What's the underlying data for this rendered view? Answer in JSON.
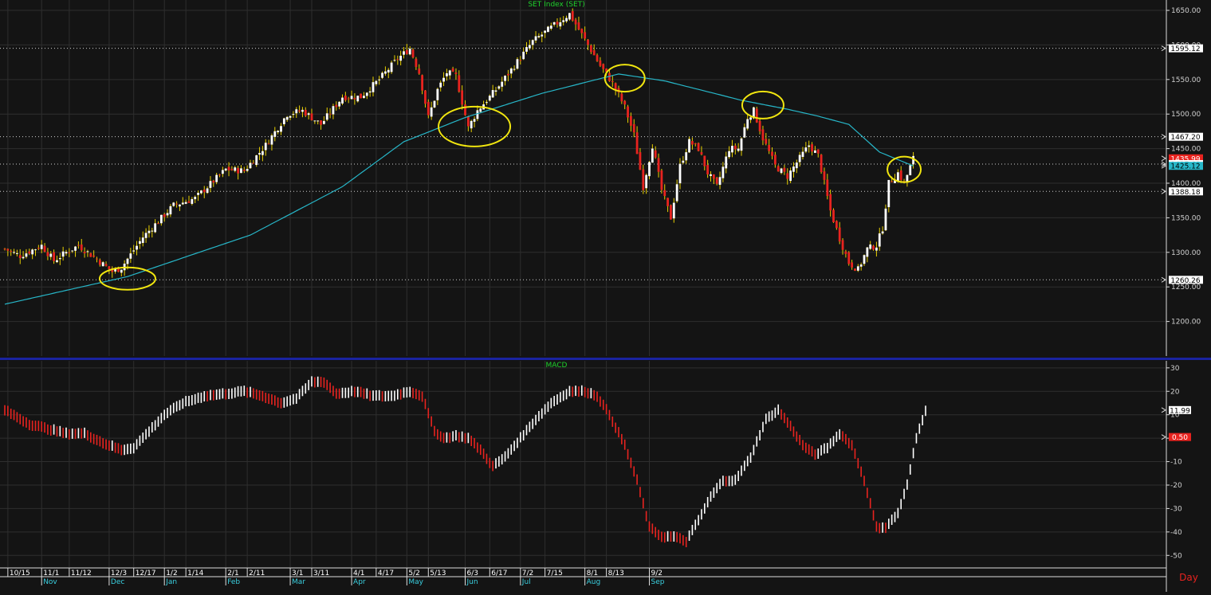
{
  "colors": {
    "background": "#141414",
    "grid": "#2e2e2e",
    "up": "#ffffff",
    "down": "#e8231f",
    "wick": "#e8d000",
    "ma": "#27b7c9",
    "highlight_ring": "#f1e60f",
    "title": "#1fd22c",
    "axis_text": "#d0d0d0",
    "separator": "#1a23a0",
    "time_text": "#3ad0e0",
    "day": "#e8231f"
  },
  "chart_data": [
    {
      "type": "candlestick",
      "title": "SET Index (SET)",
      "ylim": [
        1150,
        1665
      ],
      "y_ticks": [
        "1650.00",
        "1600.00",
        "1550.00",
        "1500.00",
        "1450.00",
        "1400.00",
        "1350.00",
        "1300.00",
        "1250.00",
        "1200.00"
      ],
      "tick_values": [
        1650,
        1600,
        1550,
        1500,
        1450,
        1400,
        1350,
        1300,
        1250,
        1200
      ],
      "reference_lines": [
        {
          "label": "1595.12",
          "value": 1595.12,
          "bg": "#ffffff",
          "fg": "#000000"
        },
        {
          "label": "1467.20",
          "value": 1467.2,
          "bg": "#ffffff",
          "fg": "#000000"
        },
        {
          "label": "1435.99",
          "value": 1435.99,
          "bg": "#e8231f",
          "fg": "#ffffff"
        },
        {
          "label": "1427.69",
          "value": 1427.69,
          "bg": "#ffffff",
          "fg": "#000000"
        },
        {
          "label": "1425.12",
          "value": 1425.12,
          "bg": "#27b7c9",
          "fg": "#000000"
        },
        {
          "label": "1388.18",
          "value": 1388.18,
          "bg": "#ffffff",
          "fg": "#000000"
        },
        {
          "label": "1260.26",
          "value": 1260.26,
          "bg": "#ffffff",
          "fg": "#000000"
        }
      ],
      "dotted_lines": [
        1595.12,
        1467.2,
        1427.69,
        1388.18,
        1260.26
      ],
      "anchors": [
        {
          "i": 0,
          "v": 1305
        },
        {
          "i": 5,
          "v": 1295
        },
        {
          "i": 12,
          "v": 1310
        },
        {
          "i": 16,
          "v": 1288
        },
        {
          "i": 20,
          "v": 1300
        },
        {
          "i": 24,
          "v": 1310
        },
        {
          "i": 30,
          "v": 1290
        },
        {
          "i": 35,
          "v": 1272
        },
        {
          "i": 38,
          "v": 1278
        },
        {
          "i": 45,
          "v": 1322
        },
        {
          "i": 55,
          "v": 1368
        },
        {
          "i": 62,
          "v": 1378
        },
        {
          "i": 72,
          "v": 1420
        },
        {
          "i": 78,
          "v": 1418
        },
        {
          "i": 85,
          "v": 1455
        },
        {
          "i": 92,
          "v": 1500
        },
        {
          "i": 97,
          "v": 1505
        },
        {
          "i": 103,
          "v": 1485
        },
        {
          "i": 110,
          "v": 1525
        },
        {
          "i": 116,
          "v": 1525
        },
        {
          "i": 122,
          "v": 1550
        },
        {
          "i": 128,
          "v": 1580
        },
        {
          "i": 132,
          "v": 1595
        },
        {
          "i": 135,
          "v": 1560
        },
        {
          "i": 138,
          "v": 1495
        },
        {
          "i": 141,
          "v": 1535
        },
        {
          "i": 144,
          "v": 1560
        },
        {
          "i": 147,
          "v": 1555
        },
        {
          "i": 151,
          "v": 1480
        },
        {
          "i": 154,
          "v": 1505
        },
        {
          "i": 160,
          "v": 1535
        },
        {
          "i": 166,
          "v": 1570
        },
        {
          "i": 172,
          "v": 1605
        },
        {
          "i": 178,
          "v": 1625
        },
        {
          "i": 184,
          "v": 1645
        },
        {
          "i": 186,
          "v": 1630
        },
        {
          "i": 190,
          "v": 1600
        },
        {
          "i": 194,
          "v": 1570
        },
        {
          "i": 198,
          "v": 1545
        },
        {
          "i": 202,
          "v": 1510
        },
        {
          "i": 205,
          "v": 1470
        },
        {
          "i": 208,
          "v": 1395
        },
        {
          "i": 211,
          "v": 1455
        },
        {
          "i": 214,
          "v": 1390
        },
        {
          "i": 217,
          "v": 1350
        },
        {
          "i": 220,
          "v": 1425
        },
        {
          "i": 223,
          "v": 1460
        },
        {
          "i": 226,
          "v": 1450
        },
        {
          "i": 229,
          "v": 1415
        },
        {
          "i": 232,
          "v": 1395
        },
        {
          "i": 236,
          "v": 1450
        },
        {
          "i": 239,
          "v": 1450
        },
        {
          "i": 242,
          "v": 1495
        },
        {
          "i": 244,
          "v": 1505
        },
        {
          "i": 247,
          "v": 1465
        },
        {
          "i": 251,
          "v": 1425
        },
        {
          "i": 255,
          "v": 1410
        },
        {
          "i": 258,
          "v": 1430
        },
        {
          "i": 262,
          "v": 1455
        },
        {
          "i": 265,
          "v": 1440
        },
        {
          "i": 267,
          "v": 1400
        },
        {
          "i": 269,
          "v": 1360
        },
        {
          "i": 272,
          "v": 1320
        },
        {
          "i": 275,
          "v": 1285
        },
        {
          "i": 278,
          "v": 1275
        },
        {
          "i": 281,
          "v": 1305
        },
        {
          "i": 284,
          "v": 1310
        },
        {
          "i": 286,
          "v": 1335
        },
        {
          "i": 288,
          "v": 1400
        },
        {
          "i": 291,
          "v": 1415
        },
        {
          "i": 293,
          "v": 1400
        },
        {
          "i": 296,
          "v": 1436
        }
      ],
      "ma_points": [
        {
          "i": 0,
          "v": 1225
        },
        {
          "i": 40,
          "v": 1265
        },
        {
          "i": 80,
          "v": 1325
        },
        {
          "i": 110,
          "v": 1395
        },
        {
          "i": 130,
          "v": 1460
        },
        {
          "i": 150,
          "v": 1495
        },
        {
          "i": 175,
          "v": 1530
        },
        {
          "i": 200,
          "v": 1558
        },
        {
          "i": 215,
          "v": 1548
        },
        {
          "i": 240,
          "v": 1520
        },
        {
          "i": 255,
          "v": 1507
        },
        {
          "i": 265,
          "v": 1497
        },
        {
          "i": 275,
          "v": 1485
        },
        {
          "i": 285,
          "v": 1445
        },
        {
          "i": 296,
          "v": 1425
        }
      ],
      "highlights": [
        {
          "i": 40,
          "v": 1262
        },
        {
          "i": 153,
          "v": 1482
        },
        {
          "i": 202,
          "v": 1552
        },
        {
          "i": 247,
          "v": 1513
        },
        {
          "i": 293,
          "v": 1420
        }
      ]
    },
    {
      "type": "bar",
      "title": "MACD",
      "ylim": [
        -55,
        33
      ],
      "y_ticks": [
        "30",
        "20",
        "10",
        "0",
        "-10",
        "-20",
        "-30",
        "-40",
        "-50"
      ],
      "tick_values": [
        30,
        20,
        10,
        0,
        -10,
        -20,
        -30,
        -40,
        -50
      ],
      "reference_lines": [
        {
          "label": "11.99",
          "value": 11.99,
          "bg": "#ffffff",
          "fg": "#000000"
        },
        {
          "label": "0.50",
          "value": 0.5,
          "bg": "#e8231f",
          "fg": "#ffffff"
        }
      ],
      "anchors": [
        {
          "i": 0,
          "v": 12
        },
        {
          "i": 8,
          "v": 6
        },
        {
          "i": 14,
          "v": 4
        },
        {
          "i": 20,
          "v": 2
        },
        {
          "i": 26,
          "v": 2
        },
        {
          "i": 32,
          "v": -2
        },
        {
          "i": 38,
          "v": -5
        },
        {
          "i": 42,
          "v": -4
        },
        {
          "i": 47,
          "v": 3
        },
        {
          "i": 52,
          "v": 10
        },
        {
          "i": 58,
          "v": 15
        },
        {
          "i": 65,
          "v": 18
        },
        {
          "i": 72,
          "v": 19
        },
        {
          "i": 78,
          "v": 20
        },
        {
          "i": 84,
          "v": 18
        },
        {
          "i": 90,
          "v": 15
        },
        {
          "i": 95,
          "v": 17
        },
        {
          "i": 100,
          "v": 24
        },
        {
          "i": 104,
          "v": 24
        },
        {
          "i": 108,
          "v": 19
        },
        {
          "i": 114,
          "v": 20
        },
        {
          "i": 120,
          "v": 18
        },
        {
          "i": 126,
          "v": 18
        },
        {
          "i": 132,
          "v": 20
        },
        {
          "i": 136,
          "v": 18
        },
        {
          "i": 140,
          "v": 3
        },
        {
          "i": 143,
          "v": 0
        },
        {
          "i": 147,
          "v": 1
        },
        {
          "i": 151,
          "v": 0
        },
        {
          "i": 155,
          "v": -5
        },
        {
          "i": 159,
          "v": -12
        },
        {
          "i": 163,
          "v": -8
        },
        {
          "i": 168,
          "v": 0
        },
        {
          "i": 173,
          "v": 8
        },
        {
          "i": 178,
          "v": 15
        },
        {
          "i": 184,
          "v": 20
        },
        {
          "i": 189,
          "v": 20
        },
        {
          "i": 193,
          "v": 18
        },
        {
          "i": 197,
          "v": 10
        },
        {
          "i": 202,
          "v": -3
        },
        {
          "i": 206,
          "v": -18
        },
        {
          "i": 210,
          "v": -38
        },
        {
          "i": 214,
          "v": -42
        },
        {
          "i": 218,
          "v": -42
        },
        {
          "i": 222,
          "v": -44
        },
        {
          "i": 226,
          "v": -35
        },
        {
          "i": 230,
          "v": -25
        },
        {
          "i": 234,
          "v": -18
        },
        {
          "i": 238,
          "v": -18
        },
        {
          "i": 243,
          "v": -8
        },
        {
          "i": 248,
          "v": 8
        },
        {
          "i": 252,
          "v": 12
        },
        {
          "i": 256,
          "v": 5
        },
        {
          "i": 260,
          "v": -3
        },
        {
          "i": 264,
          "v": -7
        },
        {
          "i": 268,
          "v": -4
        },
        {
          "i": 272,
          "v": 2
        },
        {
          "i": 276,
          "v": -3
        },
        {
          "i": 280,
          "v": -18
        },
        {
          "i": 284,
          "v": -38
        },
        {
          "i": 287,
          "v": -38
        },
        {
          "i": 291,
          "v": -32
        },
        {
          "i": 294,
          "v": -20
        },
        {
          "i": 297,
          "v": 0
        },
        {
          "i": 300,
          "v": 12
        }
      ]
    }
  ],
  "time_axis": {
    "bar_count": 301,
    "dates": [
      {
        "label": "10/15",
        "i": 1
      },
      {
        "label": "11/1",
        "i": 12
      },
      {
        "label": "11/12",
        "i": 21
      },
      {
        "label": "12/3",
        "i": 34
      },
      {
        "label": "12/17",
        "i": 42
      },
      {
        "label": "1/2",
        "i": 52
      },
      {
        "label": "1/14",
        "i": 59
      },
      {
        "label": "2/1",
        "i": 72
      },
      {
        "label": "2/11",
        "i": 79
      },
      {
        "label": "3/1",
        "i": 93
      },
      {
        "label": "3/11",
        "i": 100
      },
      {
        "label": "4/1",
        "i": 113
      },
      {
        "label": "4/17",
        "i": 121
      },
      {
        "label": "5/2",
        "i": 131
      },
      {
        "label": "5/13",
        "i": 138
      },
      {
        "label": "6/3",
        "i": 150
      },
      {
        "label": "6/17",
        "i": 158
      },
      {
        "label": "7/2",
        "i": 168
      },
      {
        "label": "7/15",
        "i": 176
      },
      {
        "label": "8/1",
        "i": 189
      },
      {
        "label": "8/13",
        "i": 196
      },
      {
        "label": "9/2",
        "i": 210
      }
    ],
    "months": [
      {
        "label": "Nov",
        "i": 12
      },
      {
        "label": "Dec",
        "i": 34
      },
      {
        "label": "Jan",
        "i": 52
      },
      {
        "label": "Feb",
        "i": 72
      },
      {
        "label": "Mar",
        "i": 93
      },
      {
        "label": "Apr",
        "i": 113
      },
      {
        "label": "May",
        "i": 131
      },
      {
        "label": "Jun",
        "i": 150
      },
      {
        "label": "Jul",
        "i": 168
      },
      {
        "label": "Aug",
        "i": 189
      },
      {
        "label": "Sep",
        "i": 210
      }
    ],
    "period_label": "Day"
  }
}
